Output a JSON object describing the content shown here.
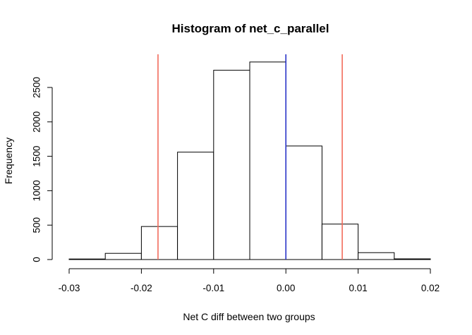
{
  "chart_data": {
    "type": "bar",
    "title": "Histogram of net_c_parallel",
    "xlabel": "Net C diff between two groups",
    "ylabel": "Frequency",
    "xlim": [
      -0.03,
      0.02
    ],
    "ylim": [
      0,
      2900
    ],
    "x_ticks": [
      -0.03,
      -0.02,
      -0.01,
      0.0,
      0.01,
      0.02
    ],
    "x_tick_labels": [
      "-0.03",
      "-0.02",
      "-0.01",
      "0.00",
      "0.01",
      "0.02"
    ],
    "y_ticks": [
      0,
      500,
      1000,
      1500,
      2000,
      2500
    ],
    "y_tick_labels": [
      "0",
      "500",
      "1000",
      "1500",
      "2000",
      "2500"
    ],
    "bins": [
      {
        "start": -0.03,
        "end": -0.025,
        "count": 8
      },
      {
        "start": -0.025,
        "end": -0.02,
        "count": 90
      },
      {
        "start": -0.02,
        "end": -0.015,
        "count": 480
      },
      {
        "start": -0.015,
        "end": -0.01,
        "count": 1560
      },
      {
        "start": -0.01,
        "end": -0.005,
        "count": 2750
      },
      {
        "start": -0.005,
        "end": 0.0,
        "count": 2870
      },
      {
        "start": 0.0,
        "end": 0.005,
        "count": 1650
      },
      {
        "start": 0.005,
        "end": 0.01,
        "count": 515
      },
      {
        "start": 0.01,
        "end": 0.015,
        "count": 100
      },
      {
        "start": 0.015,
        "end": 0.02,
        "count": 10
      }
    ],
    "vertical_lines": [
      {
        "x": -0.0177,
        "color": "#f26b5b"
      },
      {
        "x": 0.0,
        "color": "#2b35c8"
      },
      {
        "x": 0.0078,
        "color": "#f26b5b"
      }
    ],
    "grid": false,
    "bar_fill": "#ffffff",
    "bar_stroke": "#000000"
  }
}
